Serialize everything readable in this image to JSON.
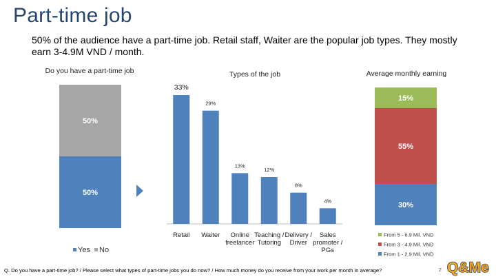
{
  "title": "Part-time job",
  "subtitle": "50% of the audience have a part-time job. Retail staff, Waiter are the popular job types. They mostly earn 3-4.9M VND / month.",
  "footer": "Q. Do you have a part-time job? / Please select what types of part-time jobs you do now? / How much money do you receive from your work per month in average?",
  "page_number": "2",
  "logo_text": "Q&Me",
  "colors": {
    "title": "#26466d",
    "blue": "#4f81bd",
    "gray": "#a6a6a6",
    "red": "#c0504d",
    "green": "#9bbb59",
    "arrow": "#4f81bd"
  },
  "chart_data": [
    {
      "type": "bar",
      "stacked": true,
      "title": "Do you have a part-time job",
      "categories": [
        ""
      ],
      "series": [
        {
          "name": "Yes",
          "values": [
            50
          ],
          "label": "50%",
          "color": "#4f81bd"
        },
        {
          "name": "No",
          "values": [
            50
          ],
          "label": "50%",
          "color": "#a6a6a6"
        }
      ],
      "ylim": [
        0,
        100
      ],
      "legend": "bottom"
    },
    {
      "type": "bar",
      "title": "Types of the job",
      "categories": [
        [
          "Retail"
        ],
        [
          "Waiter"
        ],
        [
          "Online",
          "freelancer"
        ],
        [
          "Teaching /",
          "Tutoring"
        ],
        [
          "Delivery /",
          "Driver"
        ],
        [
          "Sales",
          "promoter /",
          "PGs"
        ]
      ],
      "values": [
        33,
        29,
        13,
        12,
        8,
        4
      ],
      "labels": [
        "33%",
        "29%",
        "13%",
        "12%",
        "8%",
        "4%"
      ],
      "ylim": [
        0,
        33
      ]
    },
    {
      "type": "bar",
      "stacked": true,
      "title": "Average monthly earning",
      "categories": [
        ""
      ],
      "series": [
        {
          "name": "From 1 - 2.9 Mil. VND",
          "values": [
            30
          ],
          "label": "30%",
          "color": "#4f81bd"
        },
        {
          "name": "From 3 - 4.9 Mil. VND",
          "values": [
            55
          ],
          "label": "55%",
          "color": "#c0504d"
        },
        {
          "name": "From 5 - 6.9 Mil. VND",
          "values": [
            15
          ],
          "label": "15%",
          "color": "#9bbb59"
        }
      ],
      "ylim": [
        0,
        100
      ],
      "legend": "bottom"
    }
  ]
}
